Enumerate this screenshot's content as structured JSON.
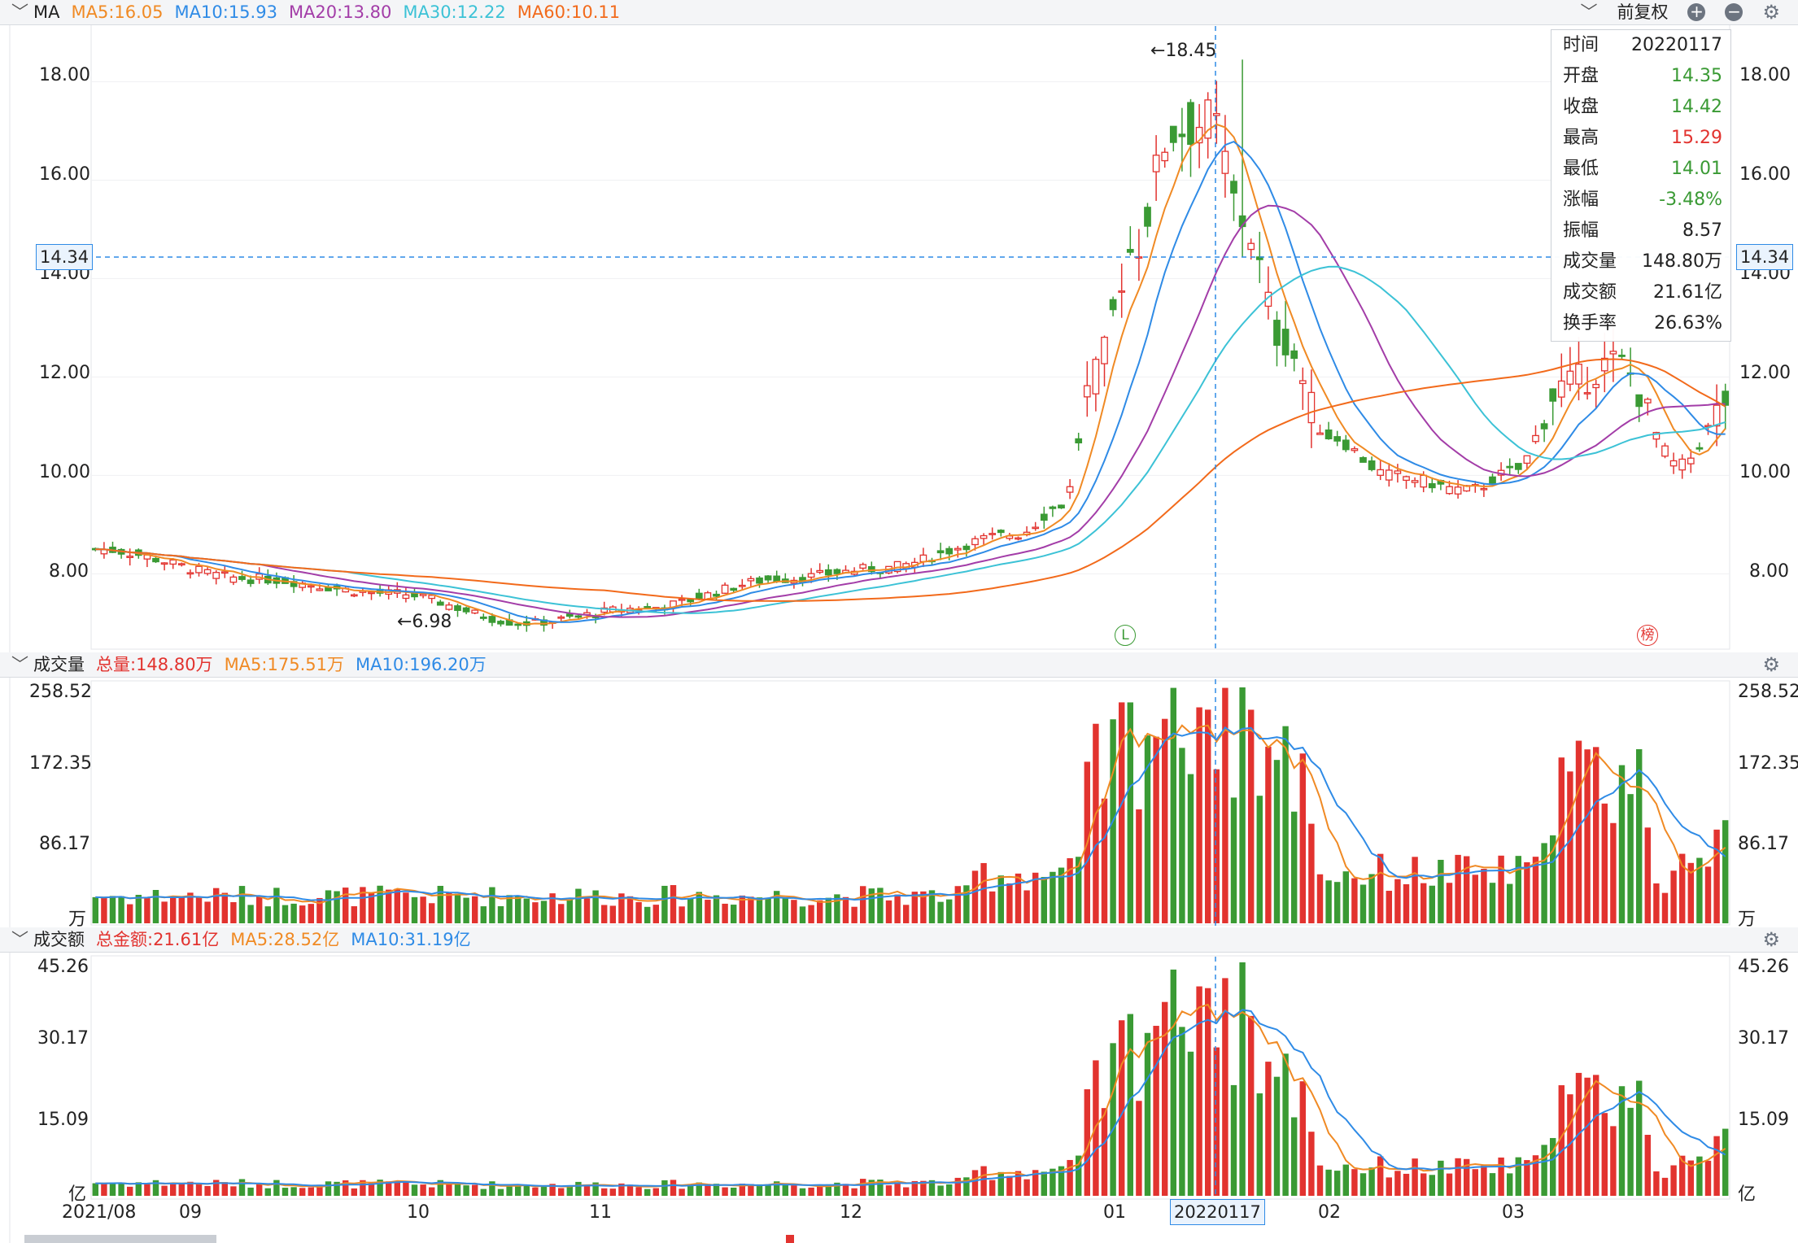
{
  "panels": {
    "price": {
      "title": "MA",
      "ma5": "MA5:16.05",
      "ma10": "MA10:15.93",
      "ma20": "MA20:13.80",
      "ma30": "MA30:12.22",
      "ma60": "MA60:10.11",
      "adjust_label": "前复权",
      "y_ticks": [
        "18.00",
        "16.00",
        "14.00",
        "12.00",
        "10.00",
        "8.00"
      ],
      "crosshair_value": "14.34",
      "high_marker": "←18.45",
      "low_marker": "←6.98",
      "marker_l": "L",
      "marker_bang": "榜"
    },
    "volume": {
      "title": "成交量",
      "total": "总量:148.80万",
      "ma5": "MA5:175.51万",
      "ma10": "MA10:196.20万",
      "y_ticks": [
        "258.52",
        "172.35",
        "86.17"
      ],
      "unit": "万"
    },
    "amount": {
      "title": "成交额",
      "total": "总金额:21.61亿",
      "ma5": "MA5:28.52亿",
      "ma10": "MA10:31.19亿",
      "y_ticks": [
        "45.26",
        "30.17",
        "15.09"
      ],
      "unit": "亿"
    }
  },
  "x_axis": {
    "labels": [
      "2021/08",
      "09",
      "10",
      "11",
      "12",
      "01",
      "02",
      "03"
    ],
    "crosshair_date": "20220117"
  },
  "tooltip": [
    {
      "label": "时间",
      "value": "20220117",
      "color": "#222222"
    },
    {
      "label": "开盘",
      "value": "14.35",
      "color": "#3a9a34"
    },
    {
      "label": "收盘",
      "value": "14.42",
      "color": "#3a9a34"
    },
    {
      "label": "最高",
      "value": "15.29",
      "color": "#e2332f"
    },
    {
      "label": "最低",
      "value": "14.01",
      "color": "#3a9a34"
    },
    {
      "label": "涨幅",
      "value": "-3.48%",
      "color": "#3a9a34"
    },
    {
      "label": "振幅",
      "value": "8.57",
      "color": "#222222"
    },
    {
      "label": "成交量",
      "value": "148.80万",
      "color": "#222222"
    },
    {
      "label": "成交额",
      "value": "21.61亿",
      "color": "#222222"
    },
    {
      "label": "换手率",
      "value": "26.63%",
      "color": "#222222"
    }
  ],
  "colors": {
    "up": "#e2332f",
    "down": "#3a9a34",
    "ma5": "#f08a24",
    "ma10": "#2f8be6",
    "ma20": "#a33da8",
    "ma30": "#3cc2d6",
    "ma60": "#f26a1b",
    "crosshair": "#2f8be6"
  },
  "chart_data": {
    "type": "candlestick",
    "ylim_price": [
      6.6,
      19.0
    ],
    "ylim_volume": [
      0,
      258.52
    ],
    "ylim_amount": [
      0,
      45.26
    ],
    "trend_anchors": [
      {
        "date": "2021/08",
        "close": 8.5
      },
      {
        "date": "2021/09",
        "close": 7.8
      },
      {
        "date": "2021/10",
        "close": 7.1
      },
      {
        "date": "2021/11",
        "close": 7.7
      },
      {
        "date": "2021/12",
        "close": 8.9
      },
      {
        "date": "2022/01",
        "close": 15.5
      },
      {
        "date": "2022/01 peak",
        "close": 18.45
      },
      {
        "date": "2022/02",
        "close": 10.0
      },
      {
        "date": "2022/03",
        "close": 11.6
      }
    ],
    "volume_peak": 258.52,
    "amount_peak": 45.26
  }
}
